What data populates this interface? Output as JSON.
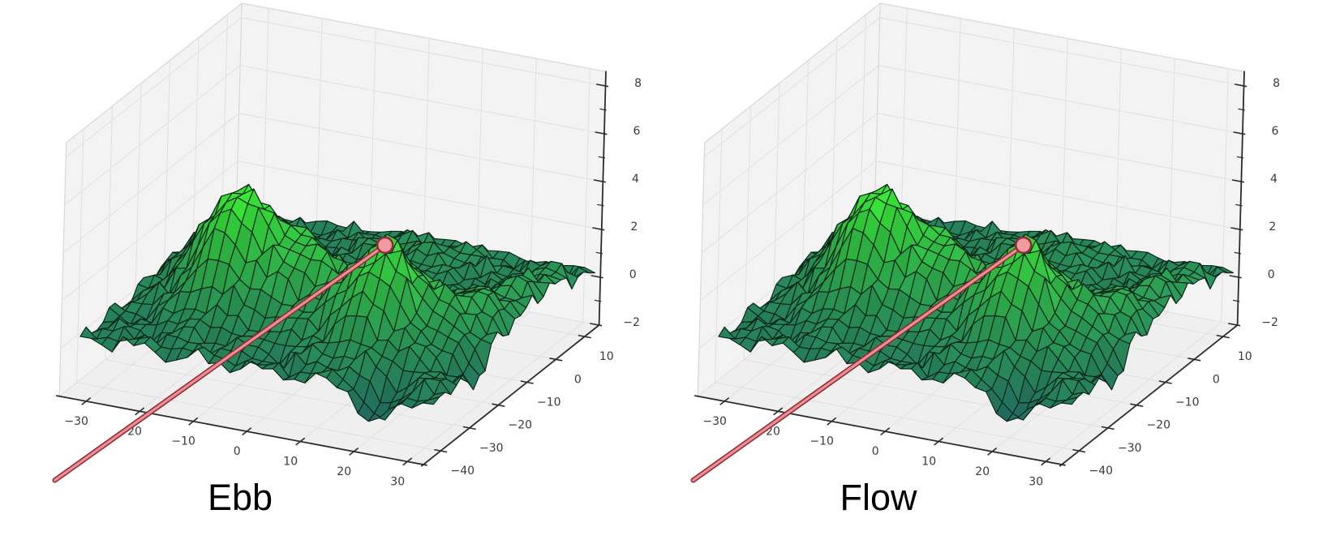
{
  "figure": {
    "background": "#ffffff",
    "subplot_titles": [
      "Ebb",
      "Flow"
    ]
  },
  "colors": {
    "surface_low": "#226e62",
    "surface_mid": "#2c9f55",
    "surface_high": "#38e636",
    "mesh_edge": "#0b2418",
    "pane": "#f3f3f3",
    "floor_pane": "#efefef",
    "pane_grid": "#e0e0e0",
    "pane_border": "#d8d8d8",
    "axis_spine": "#2b2b2b",
    "tick_label": "#3a3a3a",
    "title": "#000000",
    "line_outer": "#8e2f35",
    "line_inner": "#ee8d96",
    "marker_fill": "#f29aa2",
    "marker_edge": "#8e2f35"
  },
  "chart_data": [
    {
      "type": "surface",
      "title": "Ebb",
      "axes": {
        "x": {
          "range": [
            -35,
            33
          ],
          "ticks": [
            -30,
            -20,
            -10,
            0,
            10,
            20,
            30
          ],
          "tick_labels": [
            "−30",
            "−20",
            "−10",
            "0",
            "10",
            "20",
            "30"
          ]
        },
        "y": {
          "range": [
            -46,
            15
          ],
          "ticks": [
            -40,
            -30,
            -20,
            -10,
            0,
            10
          ],
          "tick_labels": [
            "−40",
            "−30",
            "−20",
            "−10",
            "0",
            "10"
          ]
        },
        "z": {
          "range": [
            -2,
            8.6
          ],
          "ticks": [
            -2,
            0,
            2,
            4,
            6,
            8
          ],
          "tick_labels": [
            "−2",
            "0",
            "2",
            "4",
            "6",
            "8"
          ],
          "minor_ticks": [
            -1,
            1,
            3,
            5,
            7
          ]
        }
      },
      "surface": {
        "x_domain": [
          -33,
          33
        ],
        "y_domain": [
          -43,
          13
        ],
        "z_depicted_range": [
          -1.5,
          5
        ],
        "base_height": 0.25,
        "peaks": [
          [
            -16,
            -22,
            4.0,
            5,
            6.5
          ],
          [
            13.5,
            -24.5,
            4.1,
            5.5,
            6.5
          ],
          [
            -4,
            -20,
            3.0,
            7,
            7
          ],
          [
            -24,
            -16,
            1.6,
            5,
            6
          ],
          [
            26,
            -18,
            1.6,
            5,
            8
          ],
          [
            30,
            -2,
            1.2,
            4,
            8
          ],
          [
            5,
            5,
            0.8,
            10,
            6
          ],
          [
            22,
            -42,
            -1.5,
            2.5,
            3
          ],
          [
            33,
            -28,
            -0.8,
            2.5,
            3
          ]
        ],
        "noise_waves": [
          [
            0.28,
            0.55,
            1.3,
            0.6,
            1.97
          ],
          [
            0.2,
            1.35,
            4.0,
            1.05,
            2.0
          ],
          [
            0.12,
            2.1,
            0.7,
            1.7,
            3.0
          ]
        ],
        "jitter": 0.22
      },
      "marker": {
        "x": 13.5,
        "y": -24.5,
        "z": 4.3
      },
      "trajectory_end": {
        "x": -37.5,
        "y": -42,
        "z": -6
      }
    },
    {
      "type": "surface",
      "title": "Flow",
      "axes": {
        "x": {
          "range": [
            -35,
            33
          ],
          "ticks": [
            -30,
            -20,
            -10,
            0,
            10,
            20,
            30
          ],
          "tick_labels": [
            "−30",
            "−20",
            "−10",
            "0",
            "10",
            "20",
            "30"
          ]
        },
        "y": {
          "range": [
            -46,
            15
          ],
          "ticks": [
            -40,
            -30,
            -20,
            -10,
            0,
            10
          ],
          "tick_labels": [
            "−40",
            "−30",
            "−20",
            "−10",
            "0",
            "10"
          ]
        },
        "z": {
          "range": [
            -2,
            8.6
          ],
          "ticks": [
            -2,
            0,
            2,
            4,
            6,
            8
          ],
          "tick_labels": [
            "−2",
            "0",
            "2",
            "4",
            "6",
            "8"
          ],
          "minor_ticks": [
            -1,
            1,
            3,
            5,
            7
          ]
        }
      },
      "surface": {
        "x_domain": [
          -33,
          33
        ],
        "y_domain": [
          -43,
          13
        ],
        "z_depicted_range": [
          -1.5,
          5
        ],
        "base_height": 0.25,
        "peaks": [
          [
            -16,
            -22,
            4.0,
            5,
            6.5
          ],
          [
            13.5,
            -24.5,
            4.1,
            5.5,
            6.5
          ],
          [
            -4,
            -20,
            3.0,
            7,
            7
          ],
          [
            -24,
            -16,
            1.6,
            5,
            6
          ],
          [
            26,
            -18,
            1.6,
            5,
            8
          ],
          [
            30,
            -2,
            1.2,
            4,
            8
          ],
          [
            5,
            5,
            0.8,
            10,
            6
          ],
          [
            22,
            -42,
            -1.5,
            2.5,
            3
          ],
          [
            33,
            -28,
            -0.8,
            2.5,
            3
          ]
        ],
        "noise_waves": [
          [
            0.28,
            0.55,
            1.3,
            0.6,
            1.97
          ],
          [
            0.2,
            1.35,
            4.0,
            1.05,
            2.0
          ],
          [
            0.12,
            2.1,
            0.7,
            1.7,
            3.0
          ]
        ],
        "jitter": 0.22
      },
      "marker": {
        "x": 13.5,
        "y": -24.5,
        "z": 4.3
      },
      "trajectory_end": {
        "x": -37.5,
        "y": -42,
        "z": -6
      }
    }
  ]
}
